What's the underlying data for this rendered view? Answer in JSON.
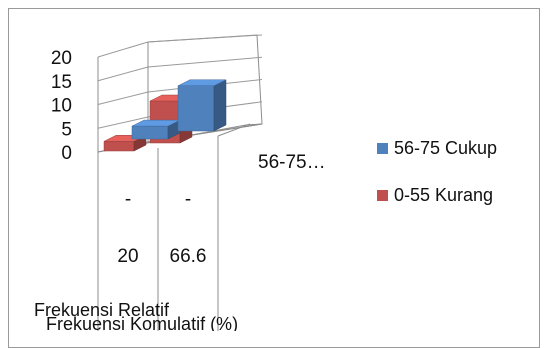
{
  "chart_data": {
    "type": "bar",
    "title": "",
    "ylim": [
      0,
      20
    ],
    "y_ticks": [
      "20",
      "15",
      "10",
      "5",
      "0"
    ],
    "categories": [
      "56-75 Cukup",
      "0-55 Kurang"
    ],
    "category_axis_label": "56-75…",
    "rows": [
      {
        "label": "Frekuensi Relatif",
        "cell_top": "-",
        "cell_bottom": "20"
      },
      {
        "label": "Frekuensi Komulatif (%)",
        "cell_top": "-",
        "cell_bottom": "66.6"
      }
    ],
    "series": [
      {
        "name": "56-75 Cukup",
        "color": "#4f81bd",
        "values": [
          4,
          14
        ]
      },
      {
        "name": "0-55 Kurang",
        "color": "#c0504d",
        "values": [
          3,
          13
        ]
      }
    ],
    "legend_position": "right"
  }
}
